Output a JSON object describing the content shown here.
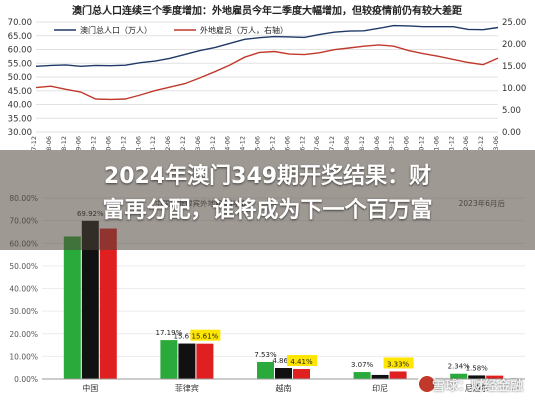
{
  "chart_data": [
    {
      "type": "line",
      "title": "澳门总人口连续三个季度增加：外地雇员今年二季度大幅增加，但较疫情前仍有较大差距",
      "legend_position": "top-left",
      "x": [
        "2007-12",
        "2008-06",
        "2008-12",
        "2009-06",
        "2009-12",
        "2010-06",
        "2010-12",
        "2011-06",
        "2011-12",
        "2012-06",
        "2012-12",
        "2013-06",
        "2013-12",
        "2014-06",
        "2014-12",
        "2015-06",
        "2015-12",
        "2016-06",
        "2016-12",
        "2017-06",
        "2017-12",
        "2018-06",
        "2018-12",
        "2019-06",
        "2019-12",
        "2020-06",
        "2020-12",
        "2021-06",
        "2021-12",
        "2022-06",
        "2022-12",
        "2023-06"
      ],
      "series": [
        {
          "name": "澳门总人口（万人）",
          "color": "#1f3a66",
          "axis": "left",
          "values": [
            53.9,
            54.2,
            54.4,
            53.9,
            54.2,
            54.1,
            54.3,
            55.2,
            55.8,
            56.8,
            58.2,
            59.6,
            60.7,
            62.2,
            63.7,
            64.3,
            64.7,
            64.6,
            64.4,
            65.4,
            66.3,
            66.7,
            66.8,
            67.7,
            68.7,
            68.6,
            68.3,
            68.3,
            68.3,
            67.3,
            67.2,
            68.0
          ]
        },
        {
          "name": "外地雇员（万人，右轴）",
          "color": "#c0392b",
          "axis": "right",
          "values": [
            10.1,
            10.4,
            9.7,
            9.1,
            7.5,
            7.4,
            7.5,
            8.4,
            9.4,
            10.2,
            11.0,
            12.3,
            13.7,
            15.2,
            17.0,
            18.1,
            18.3,
            17.7,
            17.6,
            18.0,
            18.7,
            19.1,
            19.5,
            19.8,
            19.5,
            18.5,
            17.8,
            17.2,
            16.5,
            15.8,
            15.3,
            16.8
          ]
        }
      ],
      "ylim_left": [
        30,
        70
      ],
      "yticks_left": [
        "30.00",
        "35.00",
        "40.00",
        "45.00",
        "50.00",
        "55.00",
        "60.00",
        "65.00",
        "70.00"
      ],
      "ylim_right": [
        0,
        25
      ],
      "yticks_right": [
        "0.00",
        "5.00",
        "10.00",
        "15.00",
        "20.00",
        "25.00"
      ],
      "grid": true
    },
    {
      "type": "bar",
      "title": "中国与菲律宾外地雇员构成",
      "legend_visible": "2023年6月后",
      "yticks": [
        "0.00%",
        "10.00%",
        "20.00%",
        "30.00%",
        "40.00%",
        "50.00%",
        "60.00%",
        "70.00%",
        "80.00%"
      ],
      "ylim": [
        0,
        80
      ],
      "categories": [
        "中国",
        "菲律宾",
        "越南",
        "印尼",
        "尼泊尔"
      ],
      "series": [
        {
          "color": "#2aaa3a",
          "values": [
            63.0,
            17.19,
            7.53,
            3.07,
            2.34
          ]
        },
        {
          "color": "#111111",
          "values": [
            69.92,
            15.67,
            4.86,
            1.8,
            1.58
          ]
        },
        {
          "color": "#e02020",
          "values": [
            66.5,
            15.61,
            4.41,
            3.33,
            1.49
          ]
        }
      ],
      "data_labels": [
        [
          "",
          "69.92%",
          ""
        ],
        [
          "17.19%",
          "15.67%",
          "15.61%"
        ],
        [
          "7.53%",
          "4.86%",
          "4.41%"
        ],
        [
          "3.07%",
          "",
          "3.33%"
        ],
        [
          "2.34%",
          "1.58%",
          ""
        ]
      ]
    }
  ],
  "headline": {
    "line1": "2024年澳门349期开奖结果：财",
    "line2": "富再分配，谁将成为下一个百万富"
  },
  "watermark": "雪球：财经金融"
}
